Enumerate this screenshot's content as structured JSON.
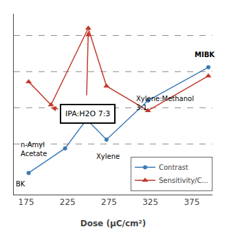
{
  "chart_data": {
    "type": "line",
    "xlabel": "Dose (μC/cm²)",
    "xlim": [
      160,
      400
    ],
    "ylim": [
      0,
      12.5
    ],
    "xticks": [
      175,
      225,
      275,
      325,
      375
    ],
    "tick_labels": "x",
    "grid": false,
    "legend": "lower right",
    "series": [
      {
        "name": "Contrast",
        "color": "#3a7ab5",
        "marker": "circle",
        "x": [
          178,
          222,
          248,
          272,
          322,
          395
        ],
        "values": [
          1.5,
          3.2,
          5.2,
          3.8,
          6.5,
          8.8
        ]
      },
      {
        "name": "Sensitivity/C...",
        "color": "#c0392b",
        "marker": "triangle-up",
        "x": [
          178,
          205,
          250,
          272,
          322,
          395
        ],
        "values": [
          7.8,
          6.2,
          11.5,
          7.5,
          5.8,
          8.2
        ]
      }
    ],
    "hlines": [
      3.5,
      6.0,
      8.5,
      11.0
    ],
    "annotations": [
      {
        "text": "BK",
        "x": 161,
        "y": 1.1
      },
      {
        "text": "n-Amyl\nAcetate",
        "x": 167,
        "y": 3.8
      },
      {
        "text": "Xylene",
        "x": 258,
        "y": 3.0
      },
      {
        "text": "Xylene:Methanol\n3:1",
        "x": 306,
        "y": 7.0
      },
      {
        "text": "MIBK",
        "x": 377,
        "y": 9.3
      }
    ],
    "box_text": {
      "text": "IPA:H2O 7:3",
      "x": 249.5,
      "y": 5.6
    },
    "arrows": [
      {
        "x": 250,
        "y": 11.3,
        "ax": 248,
        "ay": 6.8
      },
      {
        "x": 205,
        "y": 6.0,
        "ax": 215,
        "ay": 5.9
      }
    ]
  }
}
